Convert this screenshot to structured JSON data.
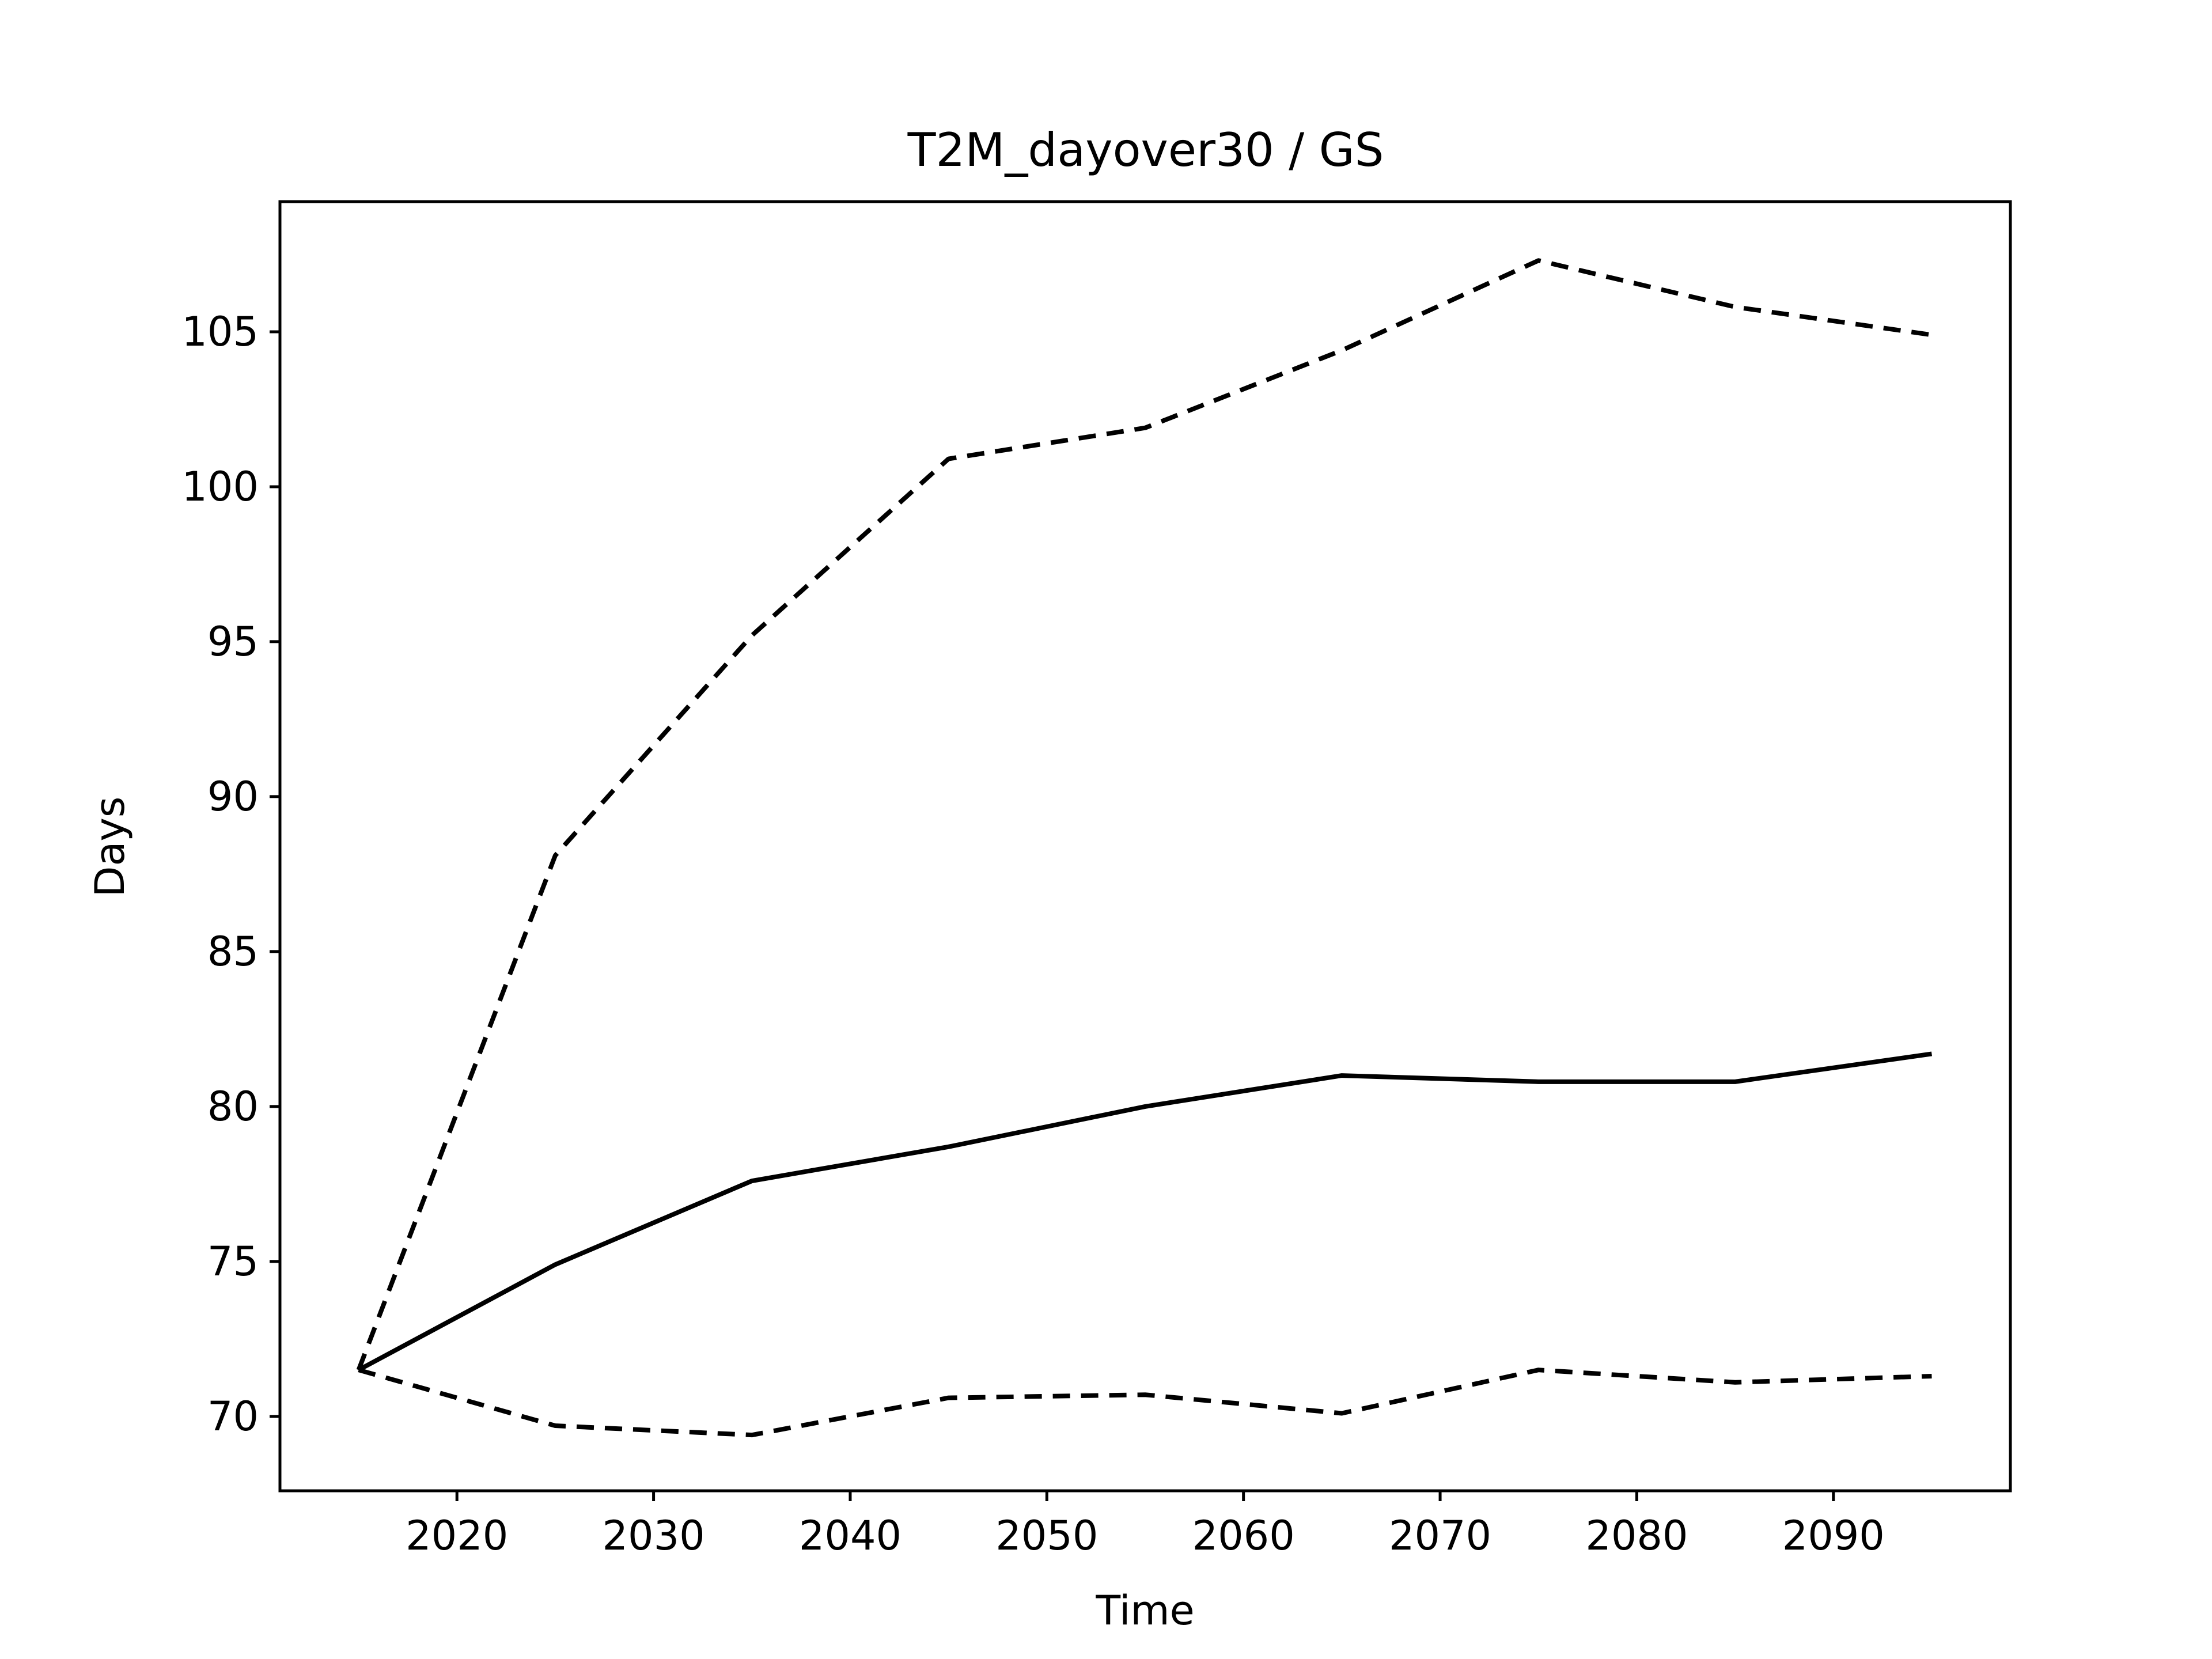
{
  "chart_data": {
    "type": "line",
    "title": "T2M_dayover30 / GS",
    "xlabel": "Time",
    "ylabel": "Days",
    "xlim": [
      2011,
      2099
    ],
    "ylim": [
      67.6,
      109.2
    ],
    "xticks": [
      2020,
      2030,
      2040,
      2050,
      2060,
      2070,
      2080,
      2090
    ],
    "yticks": [
      70,
      75,
      80,
      85,
      90,
      95,
      100,
      105
    ],
    "x": [
      2015,
      2025,
      2035,
      2045,
      2055,
      2065,
      2075,
      2085,
      2095
    ],
    "grid": false,
    "legend": "none",
    "series": [
      {
        "values": [
          71.5,
          88.1,
          95.2,
          100.9,
          101.9,
          104.4,
          107.3,
          105.8,
          104.9
        ],
        "color": "#000000",
        "linestyle": "dashed"
      },
      {
        "values": [
          71.5,
          74.9,
          77.6,
          78.7,
          80.0,
          81.0,
          80.8,
          80.8,
          81.7
        ],
        "color": "#000000",
        "linestyle": "solid"
      },
      {
        "values": [
          71.5,
          69.7,
          69.4,
          70.6,
          70.7,
          70.1,
          71.5,
          71.1,
          71.3
        ],
        "color": "#000000",
        "linestyle": "dashed"
      }
    ]
  }
}
